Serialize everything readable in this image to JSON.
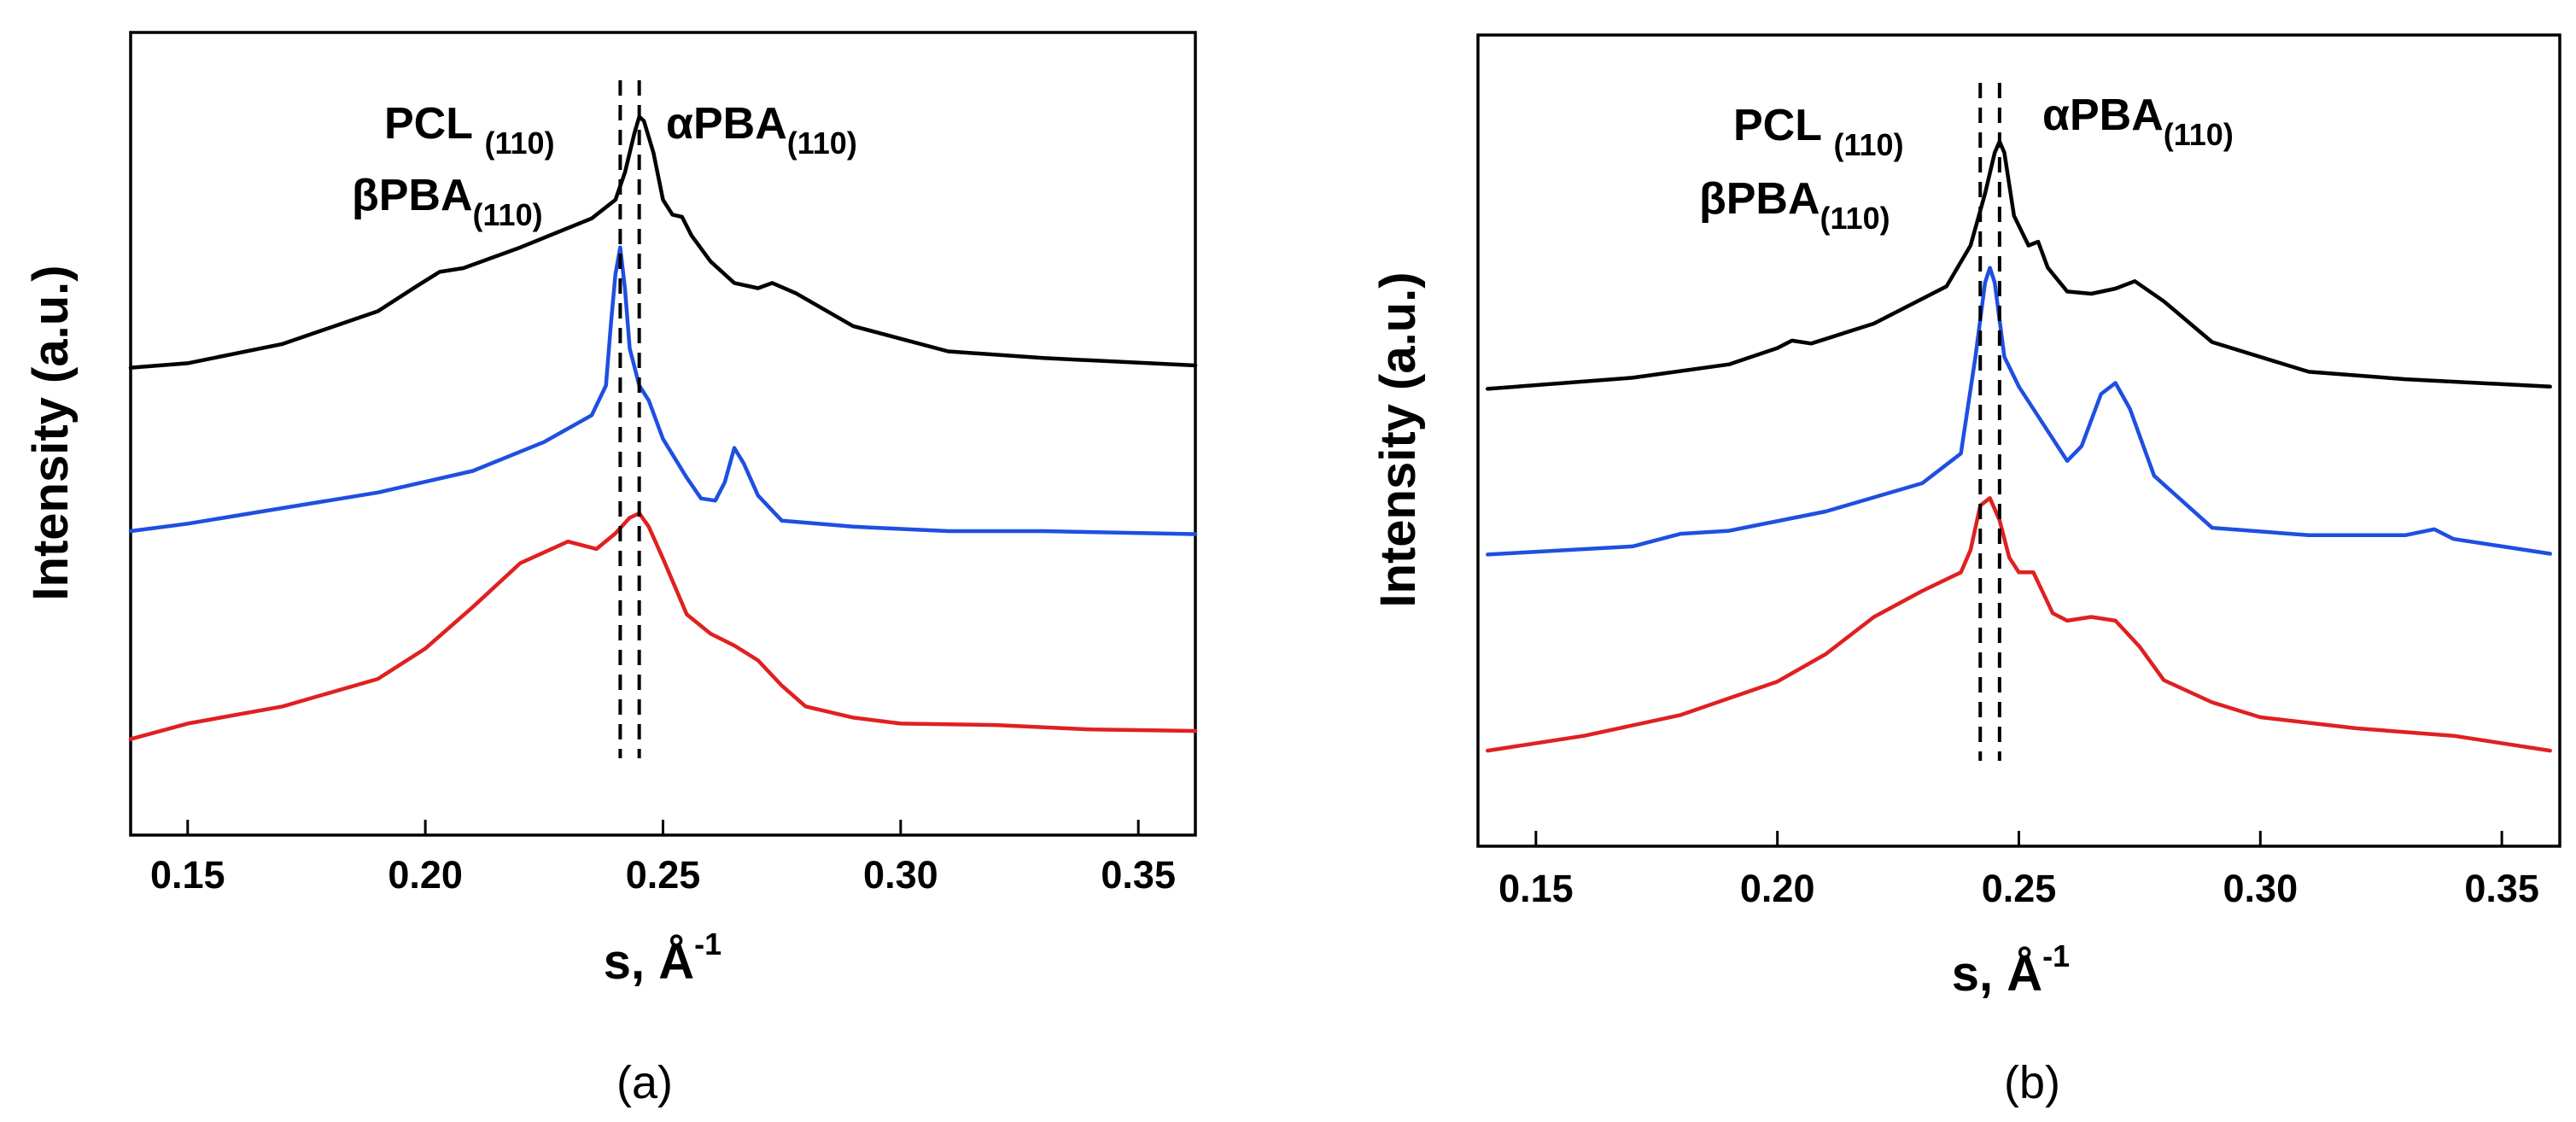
{
  "chart_data": [
    {
      "type": "line",
      "panel_label": "(a)",
      "xlabel": "s, Å",
      "xlabel_sup": "-1",
      "ylabel": "Intensity (a.u.)",
      "xlim": [
        0.138,
        0.362
      ],
      "ylim": [
        0,
        1
      ],
      "xticks": [
        0.15,
        0.2,
        0.25,
        0.3,
        0.35
      ],
      "xtick_labels": [
        "0.15",
        "0.20",
        "0.25",
        "0.30",
        "0.35"
      ],
      "reference_lines": [
        0.241,
        0.245
      ],
      "annotations": [
        {
          "text": "PCL ",
          "sub": "(110)"
        },
        {
          "text": "βPBA",
          "sub": "(110)"
        },
        {
          "text": "αPBA",
          "sub": "(110)"
        }
      ],
      "series": [
        {
          "name": "black",
          "color": "#000000",
          "x": [
            0.138,
            0.15,
            0.17,
            0.19,
            0.198,
            0.203,
            0.208,
            0.22,
            0.235,
            0.24,
            0.242,
            0.244,
            0.245,
            0.246,
            0.248,
            0.25,
            0.252,
            0.254,
            0.256,
            0.26,
            0.265,
            0.27,
            0.273,
            0.278,
            0.29,
            0.31,
            0.33,
            0.362
          ],
          "y": [
            0.574,
            0.58,
            0.606,
            0.65,
            0.683,
            0.703,
            0.708,
            0.736,
            0.775,
            0.8,
            0.837,
            0.89,
            0.912,
            0.906,
            0.863,
            0.8,
            0.78,
            0.777,
            0.752,
            0.717,
            0.688,
            0.681,
            0.688,
            0.674,
            0.63,
            0.596,
            0.587,
            0.577
          ]
        },
        {
          "name": "blue",
          "color": "#1f4fe0",
          "x": [
            0.138,
            0.15,
            0.17,
            0.19,
            0.21,
            0.225,
            0.235,
            0.238,
            0.239,
            0.24,
            0.241,
            0.242,
            0.243,
            0.245,
            0.247,
            0.25,
            0.255,
            0.258,
            0.261,
            0.263,
            0.265,
            0.267,
            0.27,
            0.275,
            0.29,
            0.31,
            0.33,
            0.362
          ],
          "y": [
            0.354,
            0.364,
            0.385,
            0.406,
            0.435,
            0.474,
            0.51,
            0.55,
            0.63,
            0.7,
            0.736,
            0.68,
            0.6,
            0.55,
            0.53,
            0.478,
            0.426,
            0.398,
            0.395,
            0.42,
            0.466,
            0.445,
            0.402,
            0.368,
            0.36,
            0.354,
            0.354,
            0.35
          ]
        },
        {
          "name": "red",
          "color": "#e02020",
          "x": [
            0.138,
            0.15,
            0.17,
            0.19,
            0.2,
            0.21,
            0.22,
            0.23,
            0.236,
            0.24,
            0.243,
            0.245,
            0.247,
            0.25,
            0.255,
            0.26,
            0.265,
            0.27,
            0.275,
            0.28,
            0.29,
            0.3,
            0.32,
            0.34,
            0.362
          ],
          "y": [
            0.074,
            0.095,
            0.118,
            0.155,
            0.196,
            0.252,
            0.311,
            0.34,
            0.33,
            0.351,
            0.372,
            0.378,
            0.36,
            0.317,
            0.242,
            0.216,
            0.2,
            0.18,
            0.146,
            0.118,
            0.103,
            0.095,
            0.093,
            0.087,
            0.085
          ]
        }
      ]
    },
    {
      "type": "line",
      "panel_label": "(b)",
      "xlabel": "s, Å",
      "xlabel_sup": "-1",
      "ylabel": "Intensity (a.u.)",
      "xlim": [
        0.138,
        0.362
      ],
      "ylim": [
        0,
        1
      ],
      "xticks": [
        0.15,
        0.2,
        0.25,
        0.3,
        0.35
      ],
      "xtick_labels": [
        "0.15",
        "0.20",
        "0.25",
        "0.30",
        "0.35"
      ],
      "reference_lines": [
        0.242,
        0.246
      ],
      "annotations": [
        {
          "text": "PCL ",
          "sub": "(110)"
        },
        {
          "text": "βPBA",
          "sub": "(110)"
        },
        {
          "text": "αPBA",
          "sub": "(110)"
        }
      ],
      "series": [
        {
          "name": "black",
          "color": "#000000",
          "x": [
            0.14,
            0.17,
            0.19,
            0.2,
            0.203,
            0.207,
            0.22,
            0.235,
            0.24,
            0.243,
            0.245,
            0.246,
            0.247,
            0.249,
            0.252,
            0.254,
            0.256,
            0.26,
            0.265,
            0.27,
            0.274,
            0.28,
            0.29,
            0.31,
            0.33,
            0.36
          ],
          "y": [
            0.557,
            0.572,
            0.59,
            0.612,
            0.622,
            0.618,
            0.645,
            0.695,
            0.75,
            0.82,
            0.875,
            0.89,
            0.875,
            0.79,
            0.75,
            0.755,
            0.72,
            0.688,
            0.685,
            0.692,
            0.702,
            0.675,
            0.62,
            0.58,
            0.57,
            0.56
          ]
        },
        {
          "name": "blue",
          "color": "#1f4fe0",
          "x": [
            0.14,
            0.17,
            0.18,
            0.19,
            0.21,
            0.23,
            0.238,
            0.241,
            0.243,
            0.244,
            0.245,
            0.247,
            0.25,
            0.255,
            0.26,
            0.263,
            0.267,
            0.27,
            0.273,
            0.278,
            0.29,
            0.31,
            0.33,
            0.336,
            0.34,
            0.36
          ],
          "y": [
            0.334,
            0.345,
            0.362,
            0.366,
            0.392,
            0.43,
            0.47,
            0.6,
            0.7,
            0.72,
            0.7,
            0.6,
            0.56,
            0.51,
            0.46,
            0.48,
            0.55,
            0.565,
            0.53,
            0.44,
            0.37,
            0.36,
            0.36,
            0.368,
            0.355,
            0.335
          ]
        },
        {
          "name": "red",
          "color": "#e02020",
          "x": [
            0.14,
            0.16,
            0.18,
            0.2,
            0.21,
            0.22,
            0.23,
            0.238,
            0.24,
            0.242,
            0.244,
            0.246,
            0.248,
            0.25,
            0.253,
            0.257,
            0.26,
            0.265,
            0.27,
            0.275,
            0.28,
            0.29,
            0.3,
            0.32,
            0.34,
            0.36
          ],
          "y": [
            0.07,
            0.09,
            0.118,
            0.163,
            0.2,
            0.25,
            0.285,
            0.31,
            0.34,
            0.4,
            0.41,
            0.38,
            0.33,
            0.31,
            0.31,
            0.255,
            0.245,
            0.25,
            0.245,
            0.21,
            0.165,
            0.135,
            0.115,
            0.1,
            0.09,
            0.07
          ]
        }
      ]
    }
  ]
}
